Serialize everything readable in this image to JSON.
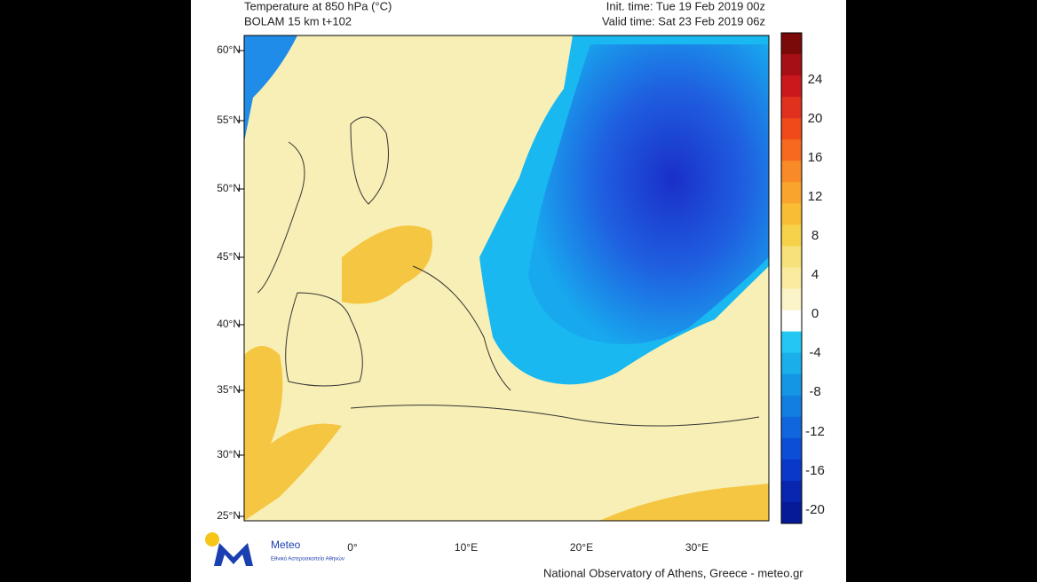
{
  "header": {
    "title": "Temperature at 850 hPa (°C)",
    "model": "BOLAM 15 km t+102",
    "init_time": "Init. time: Tue 19 Feb 2019 00z",
    "valid_time": "Valid time: Sat 23 Feb 2019 06z"
  },
  "map": {
    "lat_labels": [
      "60°N",
      "55°N",
      "50°N",
      "45°N",
      "40°N",
      "35°N",
      "30°N",
      "25°N"
    ],
    "lon_labels": [
      "0°",
      "10°E",
      "20°E",
      "30°E"
    ]
  },
  "colorbar": {
    "labels": [
      24,
      20,
      16,
      12,
      8,
      4,
      0,
      -4,
      -8,
      -12,
      -16,
      -20
    ]
  },
  "logo": {
    "name": "Meteo",
    "tagline": "Εθνικό Αστεροσκοπείο Αθηνών"
  },
  "footer": "National Observatory of Athens, Greece - meteo.gr"
}
